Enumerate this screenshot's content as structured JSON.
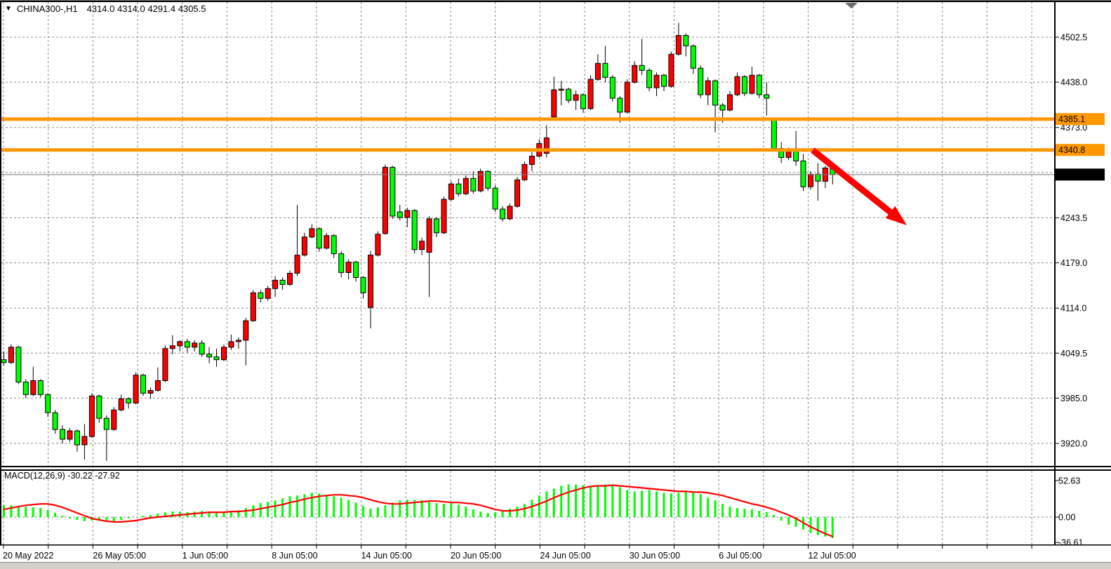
{
  "header": {
    "dropdown_icon": "▼",
    "symbol_period": "CHINA300-,H1",
    "ohlc_text": "4314.0 4314.0 4291.4 4305.5"
  },
  "price_axis": {
    "labels": [
      {
        "price": 4502.5,
        "text": "4502.5"
      },
      {
        "price": 4438.0,
        "text": "4438.0"
      },
      {
        "price": 4373.0,
        "text": "4373.0"
      },
      {
        "price": 4243.5,
        "text": "4243.5"
      },
      {
        "price": 4179.0,
        "text": "4179.0"
      },
      {
        "price": 4114.0,
        "text": "4114.0"
      },
      {
        "price": 4049.5,
        "text": "4049.5"
      },
      {
        "price": 3985.0,
        "text": "3985.0"
      },
      {
        "price": 3920.0,
        "text": "3920.0"
      }
    ]
  },
  "grid_prices": [
    4502.5,
    4438.0,
    4373.0,
    4308.5,
    4243.5,
    4179.0,
    4114.0,
    4049.5,
    3985.0,
    3920.0
  ],
  "time_axis": {
    "num_ticks": 24,
    "labels": [
      {
        "tick": 0,
        "text": "20 May 2022"
      },
      {
        "tick": 2,
        "text": "26 May 05:00"
      },
      {
        "tick": 4,
        "text": "1 Jun 05:00"
      },
      {
        "tick": 6,
        "text": "8 Jun 05:00"
      },
      {
        "tick": 8,
        "text": "14 Jun 05:00"
      },
      {
        "tick": 10,
        "text": "20 Jun 05:00"
      },
      {
        "tick": 12,
        "text": "24 Jun 05:00"
      },
      {
        "tick": 14,
        "text": "30 Jun 05:00"
      },
      {
        "tick": 16,
        "text": "6 Jul 05:00"
      },
      {
        "tick": 18,
        "text": "12 Jul 05:00"
      }
    ]
  },
  "levels": [
    {
      "price": 4385.1,
      "label": "4385.1",
      "color": "#FF9800"
    },
    {
      "price": 4340.8,
      "label": "4340.8",
      "color": "#FF9800"
    }
  ],
  "current_price": {
    "price": 4305.5,
    "label": "4305.5"
  },
  "macd_panel": {
    "label": "MACD(12,26,9) -30.22 -27.92",
    "scale_labels": [
      {
        "value": 52.63,
        "text": "52.63"
      },
      {
        "value": 0,
        "text": "0.00"
      },
      {
        "value": -36.61,
        "text": "-36.61"
      }
    ]
  },
  "annotations": {
    "arrow": {
      "from": [
        1158,
        214
      ],
      "to": [
        1292,
        321
      ],
      "color": "#FF0000"
    },
    "shift_marker_color": "#6b6b6b"
  },
  "colors": {
    "bull_candle": "#FF0000",
    "bear_candle": "#00FF00",
    "candle_outline": "#000000",
    "grid": "#8c8c8c",
    "level_orange": "#FF9800",
    "macd_histogram": "#00FF00",
    "macd_signal": "#FF0000",
    "current_price_line": "#808080",
    "badge_text": "#FFFFFF",
    "current_badge_bg": "#000000",
    "window_strip": "#D4D0C8"
  },
  "chart_data": {
    "type": "candlestick",
    "title": "CHINA300-,H1",
    "symbol": "CHINA300-",
    "timeframe": "H1",
    "current_bar": {
      "open": 4314.0,
      "high": 4314.0,
      "low": 4291.4,
      "close": 4305.5
    },
    "ylim": [
      3888,
      4533
    ],
    "grid": true,
    "note_color_convention": "red = up candle, green = down candle",
    "x_tick_labels": [
      "20 May 2022",
      "26 May 05:00",
      "1 Jun 05:00",
      "8 Jun 05:00",
      "14 Jun 05:00",
      "20 Jun 05:00",
      "24 Jun 05:00",
      "30 Jun 05:00",
      "6 Jul 05:00",
      "12 Jul 05:00"
    ],
    "horizontal_levels": [
      4385.1,
      4340.8
    ],
    "current_price": 4305.5,
    "candles_ohlc": [
      [
        4040,
        4052,
        4032,
        4036
      ],
      [
        4036,
        4062,
        4034,
        4058
      ],
      [
        4058,
        4060,
        4005,
        4008
      ],
      [
        4008,
        4012,
        3985,
        3990
      ],
      [
        3990,
        4030,
        3988,
        4010
      ],
      [
        4010,
        4012,
        3986,
        3990
      ],
      [
        3990,
        3992,
        3958,
        3964
      ],
      [
        3964,
        3968,
        3934,
        3940
      ],
      [
        3940,
        3946,
        3920,
        3926
      ],
      [
        3926,
        3942,
        3922,
        3938
      ],
      [
        3938,
        3940,
        3908,
        3918
      ],
      [
        3918,
        3948,
        3897,
        3930
      ],
      [
        3930,
        3992,
        3928,
        3988
      ],
      [
        3988,
        3990,
        3950,
        3956
      ],
      [
        3956,
        3960,
        3895,
        3940
      ],
      [
        3940,
        3972,
        3938,
        3968
      ],
      [
        3968,
        3990,
        3966,
        3984
      ],
      [
        3984,
        3986,
        3970,
        3978
      ],
      [
        3978,
        4022,
        3976,
        4018
      ],
      [
        4018,
        4020,
        3988,
        3992
      ],
      [
        3992,
        4000,
        3984,
        3996
      ],
      [
        3996,
        4029,
        3994,
        4010
      ],
      [
        4010,
        4060,
        4008,
        4056
      ],
      [
        4056,
        4075,
        4048,
        4060
      ],
      [
        4060,
        4068,
        4052,
        4066
      ],
      [
        4066,
        4070,
        4050,
        4058
      ],
      [
        4058,
        4068,
        4052,
        4064
      ],
      [
        4064,
        4068,
        4044,
        4048
      ],
      [
        4048,
        4058,
        4035,
        4044
      ],
      [
        4044,
        4056,
        4030,
        4040
      ],
      [
        4040,
        4062,
        4038,
        4058
      ],
      [
        4058,
        4076,
        4054,
        4066
      ],
      [
        4066,
        4072,
        4056,
        4068
      ],
      [
        4068,
        4100,
        4032,
        4096
      ],
      [
        4096,
        4140,
        4094,
        4136
      ],
      [
        4136,
        4140,
        4122,
        4128
      ],
      [
        4128,
        4146,
        4124,
        4142
      ],
      [
        4142,
        4160,
        4130,
        4154
      ],
      [
        4154,
        4158,
        4140,
        4148
      ],
      [
        4148,
        4168,
        4146,
        4164
      ],
      [
        4164,
        4262,
        4160,
        4190
      ],
      [
        4190,
        4222,
        4188,
        4216
      ],
      [
        4216,
        4234,
        4214,
        4228
      ],
      [
        4228,
        4230,
        4195,
        4200
      ],
      [
        4200,
        4222,
        4198,
        4218
      ],
      [
        4218,
        4220,
        4186,
        4192
      ],
      [
        4192,
        4196,
        4158,
        4165
      ],
      [
        4165,
        4184,
        4155,
        4180
      ],
      [
        4180,
        4182,
        4152,
        4158
      ],
      [
        4158,
        4160,
        4128,
        4136
      ],
      [
        4115,
        4196,
        4085,
        4190
      ],
      [
        4190,
        4224,
        4188,
        4220
      ],
      [
        4221,
        4320,
        4219,
        4316
      ],
      [
        4316,
        4318,
        4242,
        4246
      ],
      [
        4252,
        4262,
        4240,
        4244
      ],
      [
        4244,
        4258,
        4230,
        4254
      ],
      [
        4254,
        4256,
        4192,
        4198
      ],
      [
        4198,
        4215,
        4190,
        4210
      ],
      [
        4194,
        4246,
        4130,
        4242
      ],
      [
        4242,
        4244,
        4216,
        4222
      ],
      [
        4222,
        4274,
        4220,
        4270
      ],
      [
        4270,
        4296,
        4268,
        4292
      ],
      [
        4292,
        4300,
        4274,
        4278
      ],
      [
        4278,
        4304,
        4276,
        4300
      ],
      [
        4300,
        4310,
        4278,
        4282
      ],
      [
        4282,
        4314,
        4280,
        4310
      ],
      [
        4310,
        4312,
        4282,
        4286
      ],
      [
        4286,
        4290,
        4252,
        4256
      ],
      [
        4256,
        4260,
        4238,
        4242
      ],
      [
        4242,
        4264,
        4240,
        4260
      ],
      [
        4260,
        4302,
        4258,
        4298
      ],
      [
        4298,
        4324,
        4296,
        4320
      ],
      [
        4320,
        4338,
        4310,
        4332
      ],
      [
        4332,
        4356,
        4330,
        4350
      ],
      [
        4336,
        4376,
        4330,
        4358
      ],
      [
        4388,
        4446,
        4386,
        4427
      ],
      [
        4427,
        4440,
        4405,
        4428
      ],
      [
        4428,
        4430,
        4408,
        4412
      ],
      [
        4412,
        4426,
        4398,
        4420
      ],
      [
        4420,
        4422,
        4394,
        4400
      ],
      [
        4400,
        4448,
        4398,
        4442
      ],
      [
        4442,
        4478,
        4440,
        4465
      ],
      [
        4465,
        4490,
        4438,
        4445
      ],
      [
        4445,
        4448,
        4410,
        4415
      ],
      [
        4415,
        4418,
        4380,
        4395
      ],
      [
        4395,
        4442,
        4393,
        4438
      ],
      [
        4438,
        4468,
        4436,
        4462
      ],
      [
        4462,
        4500,
        4448,
        4455
      ],
      [
        4455,
        4458,
        4425,
        4430
      ],
      [
        4430,
        4452,
        4418,
        4448
      ],
      [
        4448,
        4450,
        4425,
        4432
      ],
      [
        4432,
        4482,
        4430,
        4478
      ],
      [
        4478,
        4523,
        4476,
        4505
      ],
      [
        4505,
        4508,
        4475,
        4490
      ],
      [
        4490,
        4492,
        4450,
        4458
      ],
      [
        4458,
        4462,
        4415,
        4420
      ],
      [
        4420,
        4445,
        4405,
        4440
      ],
      [
        4440,
        4442,
        4366,
        4405
      ],
      [
        4405,
        4408,
        4380,
        4398
      ],
      [
        4398,
        4425,
        4396,
        4420
      ],
      [
        4420,
        4452,
        4418,
        4446
      ],
      [
        4446,
        4448,
        4418,
        4422
      ],
      [
        4422,
        4460,
        4420,
        4448
      ],
      [
        4448,
        4450,
        4415,
        4420
      ],
      [
        4420,
        4438,
        4390,
        4415
      ],
      [
        4385,
        4386,
        4340,
        4343
      ],
      [
        4343,
        4352,
        4322,
        4330
      ],
      [
        4330,
        4344,
        4326,
        4340
      ],
      [
        4340,
        4368,
        4318,
        4325
      ],
      [
        4325,
        4335,
        4282,
        4288
      ],
      [
        4288,
        4310,
        4284,
        4306
      ],
      [
        4306,
        4322,
        4268,
        4296
      ],
      [
        4296,
        4318,
        4286,
        4315
      ],
      [
        4314,
        4314,
        4291.4,
        4305.5
      ]
    ],
    "indicator": {
      "name": "MACD(12,26,9)",
      "current_values": [
        -30.22,
        -27.92
      ],
      "scale": [
        52.63,
        0.0,
        -36.61
      ],
      "main_histogram": [
        17,
        17,
        16,
        15,
        14,
        13,
        10,
        6,
        2,
        -2,
        -4,
        -6,
        -5,
        -4,
        -5,
        -6,
        -4,
        -2,
        0,
        2,
        3,
        5,
        7,
        8,
        8,
        7,
        8,
        9,
        8,
        7,
        8,
        9,
        10,
        13,
        17,
        20,
        22,
        24,
        27,
        30,
        31,
        33,
        35,
        34,
        32,
        30,
        28,
        25,
        21,
        16,
        12,
        14,
        17,
        21,
        24,
        25,
        25,
        24,
        22,
        20,
        19,
        20,
        18,
        15,
        11,
        8,
        6,
        7,
        9,
        12,
        15,
        19,
        25,
        31,
        37,
        41,
        45,
        47,
        47,
        46,
        45,
        46,
        47,
        46,
        43,
        39,
        37,
        38,
        39,
        37,
        35,
        34,
        35,
        37,
        36,
        33,
        28,
        24,
        19,
        15,
        13,
        12,
        11,
        9,
        7,
        3,
        -5,
        -11,
        -14,
        -18,
        -23,
        -26,
        -28,
        -30.22
      ],
      "signal_line": [
        11,
        13,
        15,
        17,
        18,
        19,
        19,
        17,
        14,
        10,
        6,
        2,
        -2,
        -4,
        -6,
        -7,
        -7,
        -6,
        -5,
        -3,
        -1,
        0,
        1,
        2,
        3,
        4,
        5,
        6,
        7,
        7,
        7,
        8,
        8,
        9,
        10,
        12,
        14,
        16,
        18,
        21,
        23,
        26,
        28,
        30,
        31,
        32,
        32,
        31,
        30,
        28,
        25,
        22,
        20,
        19,
        19,
        20,
        21,
        22,
        23,
        23,
        22,
        21,
        21,
        20,
        19,
        17,
        14,
        11,
        9,
        9,
        10,
        12,
        15,
        19,
        23,
        28,
        32,
        36,
        39,
        42,
        44,
        45,
        45,
        46,
        45,
        44,
        43,
        42,
        41,
        40,
        39,
        38,
        37,
        37,
        36,
        36,
        35,
        33,
        31,
        28,
        25,
        22,
        19,
        17,
        14,
        11,
        7,
        3,
        -2,
        -8,
        -14,
        -19,
        -24,
        -27.92
      ]
    }
  }
}
